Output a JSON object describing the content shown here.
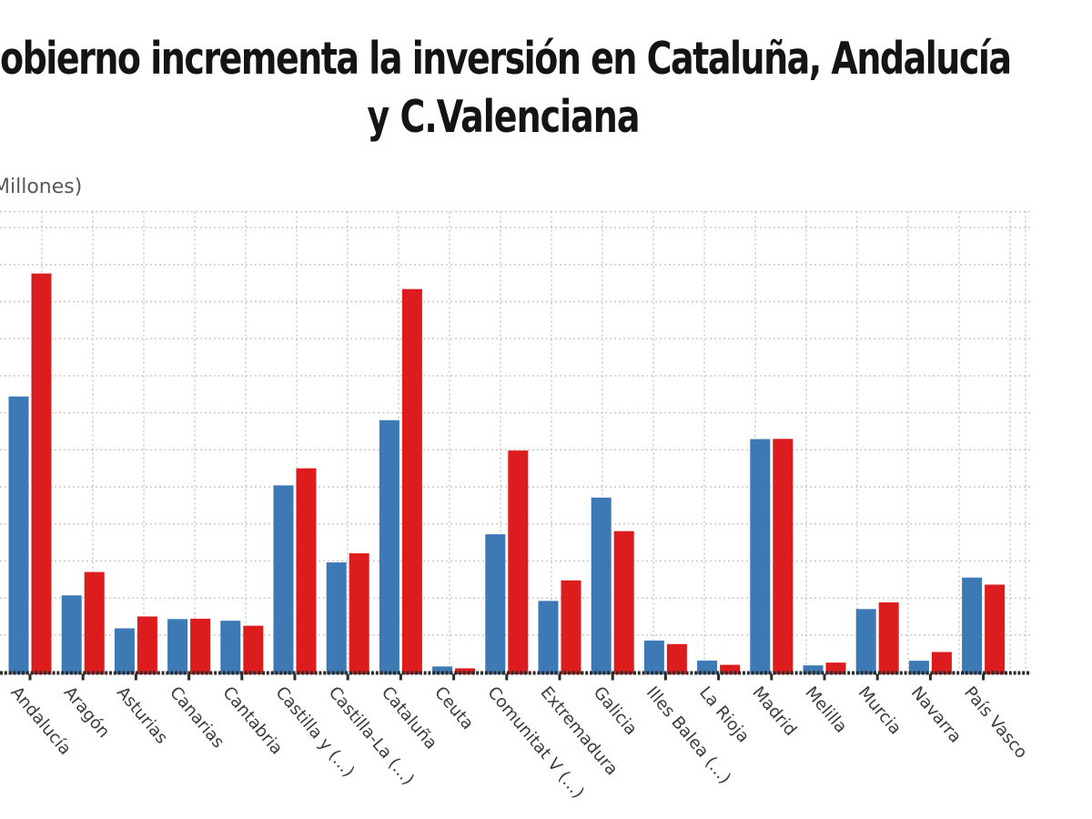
{
  "page": {
    "title_line1": "obierno incrementa la inversión en Cataluña, Andalucía",
    "title_line2": "y C.Valenciana",
    "units_label": "Millones)"
  },
  "chart_data": {
    "type": "bar",
    "title": "obierno incrementa la inversión en Cataluña, Andalucía y C.Valenciana",
    "ylabel": "Millones)",
    "xlabel": "",
    "categories": [
      "Andalucía",
      "Aragón",
      "Asturias",
      "Canarias",
      "Cantabria",
      "Castilla y (...)",
      "Castilla-La (...)",
      "Cataluña",
      "Ceuta",
      "Comunitat V (...)",
      "Extremadura",
      "Galicia",
      "Illes Balea (...)",
      "La Rioja",
      "Madrid",
      "Melilla",
      "Murcia",
      "Navarra",
      "País Vasco"
    ],
    "series": [
      {
        "color": "#3d79b4",
        "color_name": "blue",
        "values": [
          1488,
          414,
          236,
          286,
          277,
          1008,
          592,
          1360,
          30,
          744,
          384,
          942,
          170,
          62,
          1258,
          36,
          340,
          61,
          510
        ]
      },
      {
        "color": "#dd1c1d",
        "color_name": "red",
        "values": [
          2152,
          540,
          300,
          288,
          250,
          1100,
          641,
          2068,
          20,
          1196,
          495,
          761,
          151,
          39,
          1259,
          51,
          376,
          108,
          472
        ]
      }
    ],
    "ylim": [
      0,
      2500
    ],
    "gridline_step": 200,
    "grid": "dashed",
    "grid_color": "#c6c6c6",
    "axis_color": "#2b2b2b",
    "legend": "none",
    "y_tick_labels_visible": false,
    "x_tick_label_rotation_deg": 50
  }
}
